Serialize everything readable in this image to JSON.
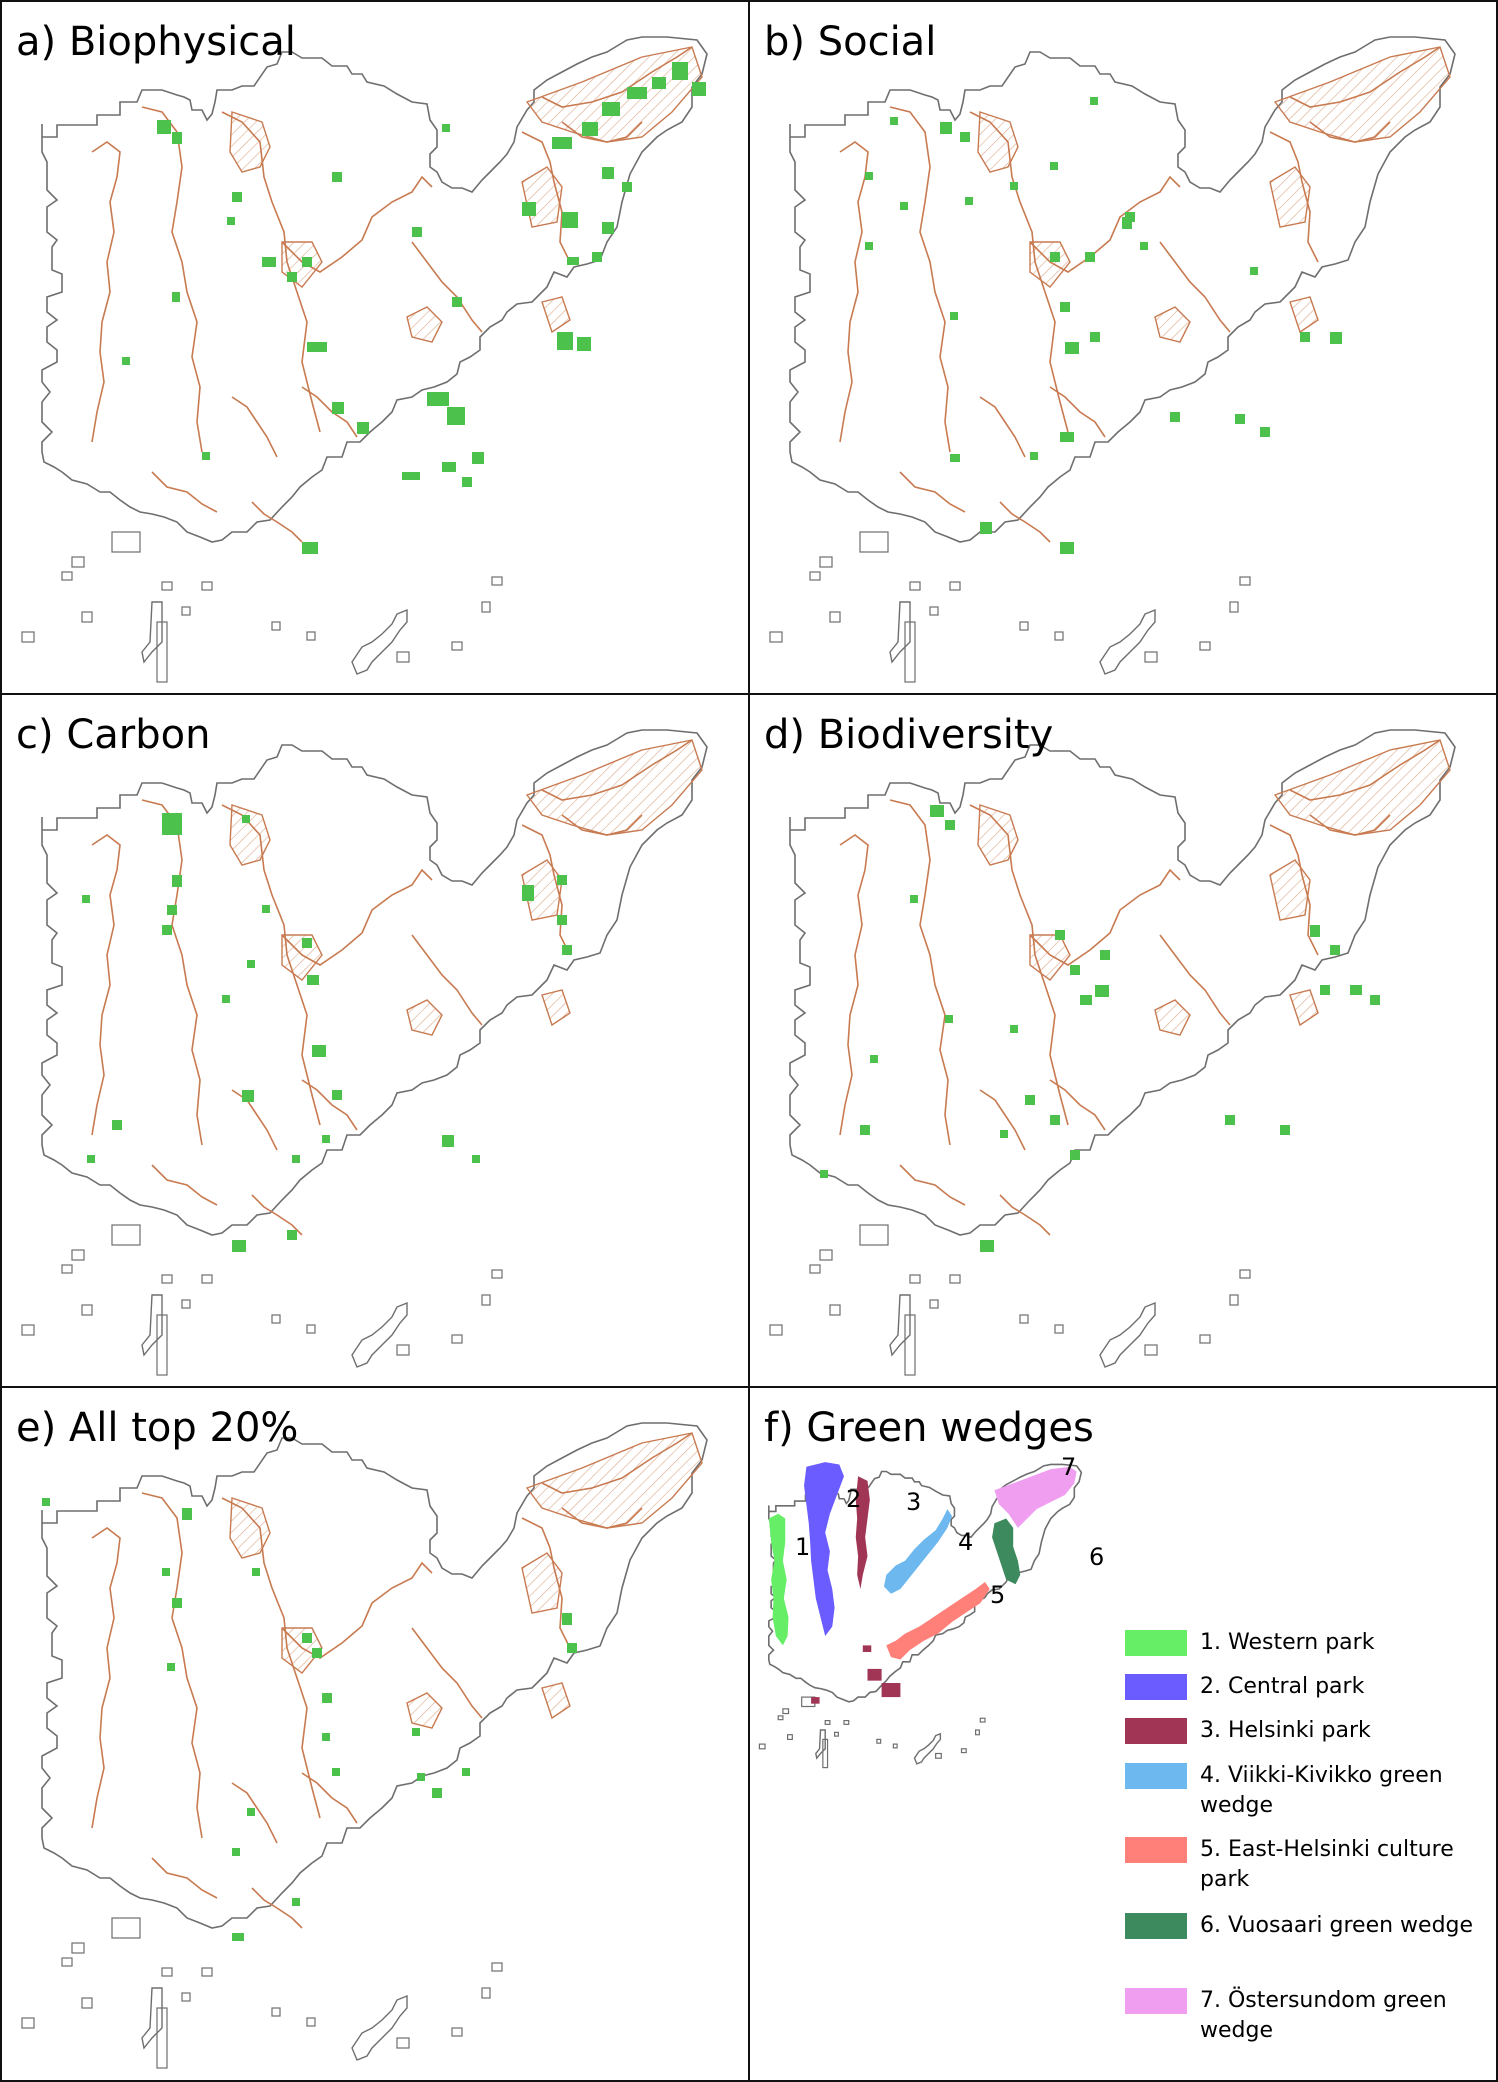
{
  "panels": [
    {
      "id": "a",
      "title": "a) Biophysical"
    },
    {
      "id": "b",
      "title": "b) Social"
    },
    {
      "id": "c",
      "title": "c) Carbon"
    },
    {
      "id": "d",
      "title": "d) Biodiversity"
    },
    {
      "id": "e",
      "title": "e) All top 20%"
    },
    {
      "id": "f",
      "title": "f) Green wedges"
    }
  ],
  "legend": {
    "items": [
      {
        "label": "1. Western park",
        "color": "#66ee66"
      },
      {
        "label": "2. Central park",
        "color": "#6a5cff"
      },
      {
        "label": "3. Helsinki park",
        "color": "#a03555"
      },
      {
        "label": "4. Viikki-Kivikko green wedge",
        "color": "#6cb8ef"
      },
      {
        "label": "5. East-Helsinki culture park",
        "color": "#ff8079"
      },
      {
        "label": "6. Vuosaari green wedge",
        "color": "#3d8a5e"
      },
      {
        "label": "7. Östersundom green wedge",
        "color": "#f09ef0"
      }
    ]
  },
  "wedge_numbers": [
    "1",
    "2",
    "3",
    "4",
    "5",
    "6",
    "7"
  ],
  "colors": {
    "outline": "#6e6e6e",
    "wedge_outline": "#c87a50",
    "priority_cells": "#4cc24c",
    "hatch": "#d9a88a"
  }
}
